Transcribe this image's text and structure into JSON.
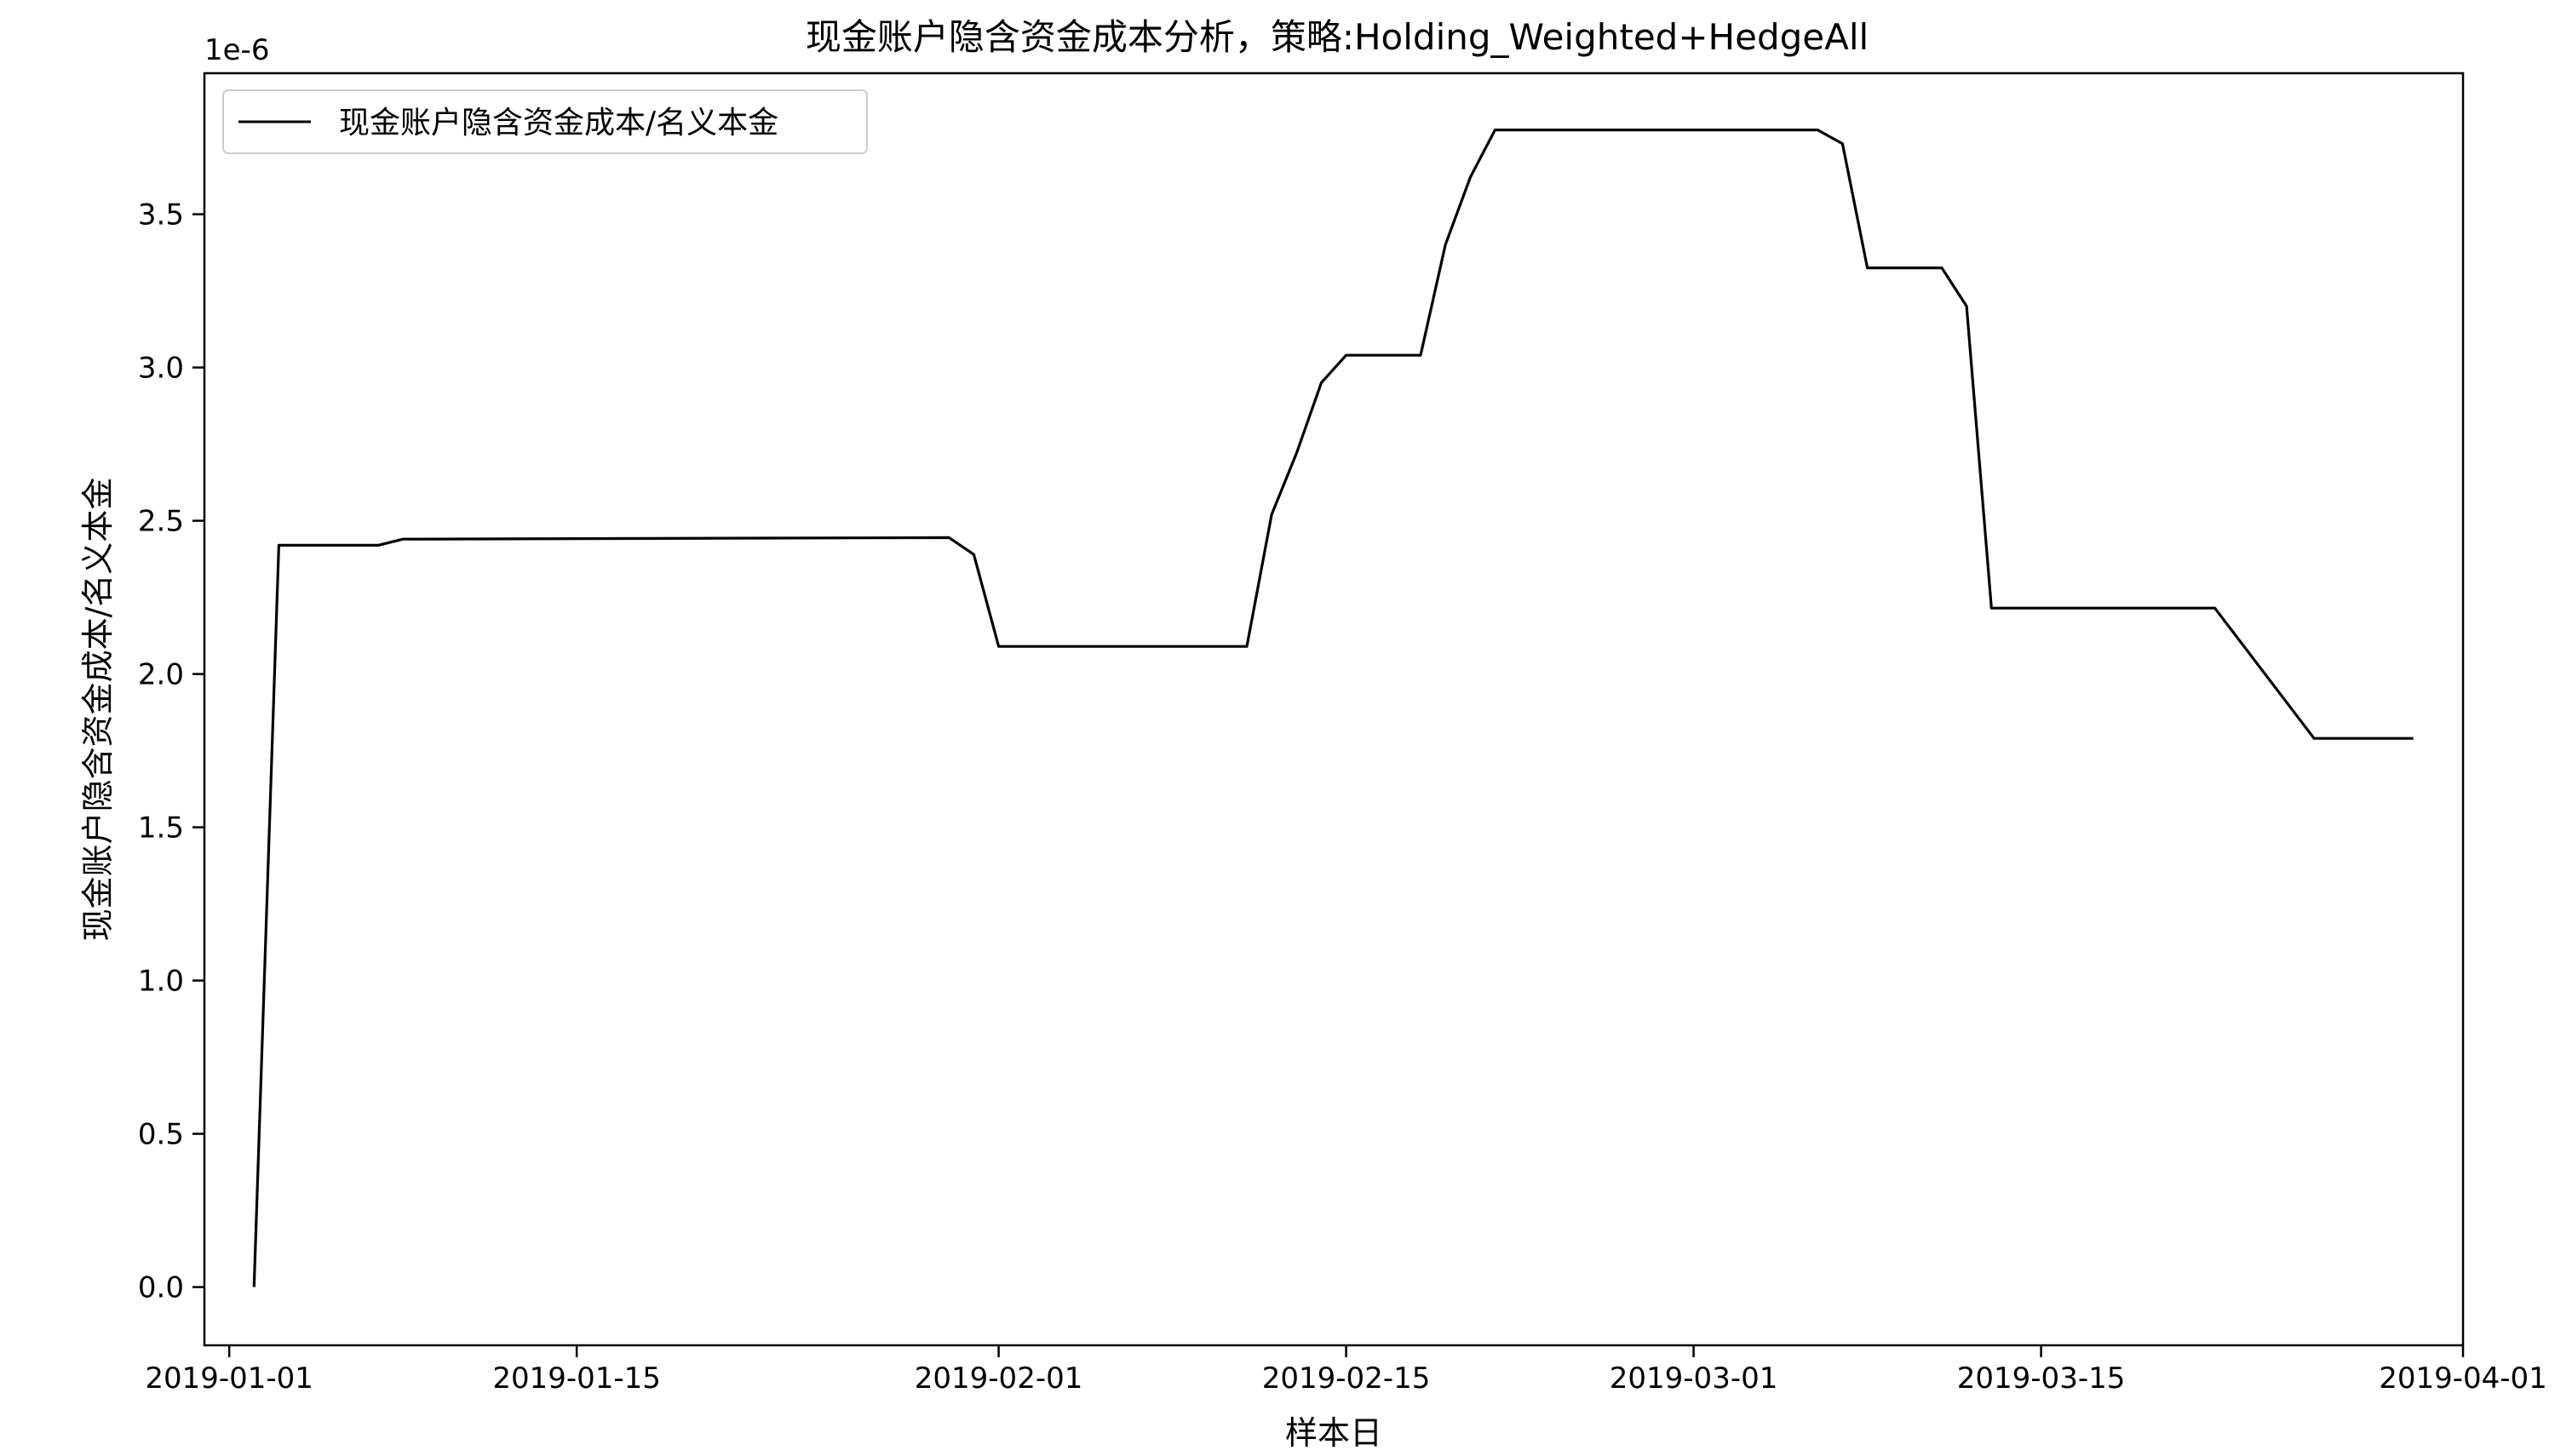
{
  "chart_data": {
    "type": "line",
    "title": "现金账户隐含资金成本分析，策略:Holding_Weighted+HedgeAll",
    "xlabel": "样本日",
    "ylabel": "现金账户隐含资金成本/名义本金",
    "y_offset_text": "1e-6",
    "y_scale_factor": 1e-06,
    "xlim": [
      "2018-12-31",
      "2019-04-01"
    ],
    "ylim": [
      -0.19,
      3.96
    ],
    "x_ticks": [
      "2019-01-01",
      "2019-01-15",
      "2019-02-01",
      "2019-02-15",
      "2019-03-01",
      "2019-03-15",
      "2019-04-01"
    ],
    "y_ticks": [
      0.0,
      0.5,
      1.0,
      1.5,
      2.0,
      2.5,
      3.0,
      3.5
    ],
    "y_tick_labels": [
      "0.0",
      "0.5",
      "1.0",
      "1.5",
      "2.0",
      "2.5",
      "3.0",
      "3.5"
    ],
    "grid": false,
    "legend_position": "top-left",
    "series": [
      {
        "name": "现金账户隐含资金成本/名义本金",
        "color": "#000000",
        "points": [
          [
            "2019-01-02",
            0.0
          ],
          [
            "2019-01-03",
            2.42
          ],
          [
            "2019-01-07",
            2.42
          ],
          [
            "2019-01-08",
            2.44
          ],
          [
            "2019-01-30",
            2.445
          ],
          [
            "2019-01-31",
            2.39
          ],
          [
            "2019-02-01",
            2.09
          ],
          [
            "2019-02-11",
            2.09
          ],
          [
            "2019-02-12",
            2.52
          ],
          [
            "2019-02-13",
            2.72
          ],
          [
            "2019-02-14",
            2.95
          ],
          [
            "2019-02-15",
            3.04
          ],
          [
            "2019-02-18",
            3.04
          ],
          [
            "2019-02-19",
            3.4
          ],
          [
            "2019-02-20",
            3.62
          ],
          [
            "2019-02-21",
            3.775
          ],
          [
            "2019-03-06",
            3.775
          ],
          [
            "2019-03-07",
            3.73
          ],
          [
            "2019-03-08",
            3.325
          ],
          [
            "2019-03-11",
            3.325
          ],
          [
            "2019-03-12",
            3.2
          ],
          [
            "2019-03-13",
            2.215
          ],
          [
            "2019-03-22",
            2.215
          ],
          [
            "2019-03-26",
            1.79
          ],
          [
            "2019-03-30",
            1.79
          ]
        ]
      }
    ]
  }
}
